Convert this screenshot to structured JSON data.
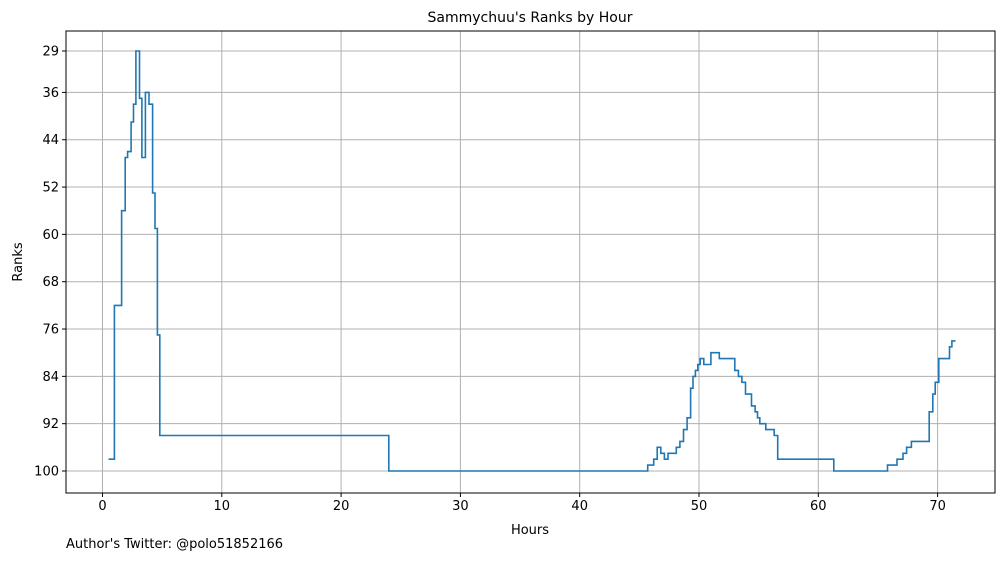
{
  "footer_text": "Author's Twitter: @polo51852166",
  "chart_data": {
    "type": "line",
    "step": true,
    "title": "Sammychuu's Ranks by Hour",
    "xlabel": "Hours",
    "ylabel": "Ranks",
    "x_ticks": [
      0,
      10,
      20,
      30,
      40,
      50,
      60,
      70
    ],
    "y_ticks": [
      29,
      36,
      44,
      52,
      60,
      68,
      76,
      84,
      92,
      100
    ],
    "y_inverted": true,
    "grid": true,
    "line_color": "#1f77b4",
    "x": [
      0.5,
      1.0,
      1.6,
      1.9,
      2.1,
      2.4,
      2.6,
      2.8,
      3.1,
      3.3,
      3.6,
      3.9,
      4.2,
      4.4,
      4.6,
      4.8,
      24.0,
      45.7,
      46.2,
      46.5,
      46.8,
      47.1,
      47.4,
      48.1,
      48.4,
      48.7,
      49.0,
      49.3,
      49.5,
      49.7,
      49.9,
      50.1,
      50.4,
      51.0,
      51.7,
      53.0,
      53.3,
      53.6,
      53.9,
      54.4,
      54.7,
      54.9,
      55.1,
      55.6,
      56.3,
      56.6,
      61.3,
      65.8,
      66.6,
      67.1,
      67.4,
      67.8,
      69.3,
      69.6,
      69.8,
      70.1,
      71.0,
      71.2,
      71.5
    ],
    "y": [
      98,
      72,
      56,
      47,
      46,
      41,
      38,
      29,
      37,
      47,
      36,
      38,
      53,
      59,
      77,
      94,
      100,
      99,
      98,
      96,
      97,
      98,
      97,
      96,
      95,
      93,
      91,
      86,
      84,
      83,
      82,
      81,
      82,
      80,
      81,
      83,
      84,
      85,
      87,
      89,
      90,
      91,
      92,
      93,
      94,
      98,
      100,
      99,
      98,
      97,
      96,
      95,
      90,
      87,
      85,
      81,
      79,
      78,
      78
    ]
  }
}
